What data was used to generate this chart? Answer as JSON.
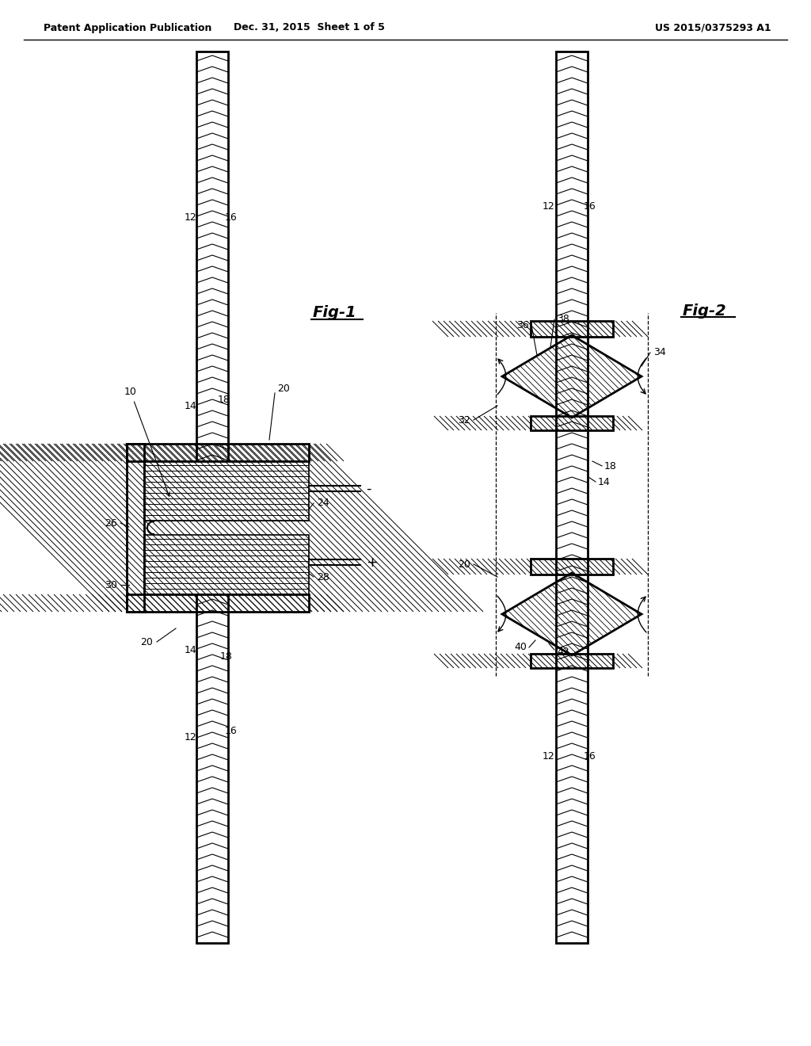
{
  "background_color": "#ffffff",
  "line_color": "#000000",
  "header_left": "Patent Application Publication",
  "header_center": "Dec. 31, 2015  Sheet 1 of 5",
  "header_right": "US 2015/0375293 A1",
  "fig1_label": "Fig-1",
  "fig2_label": "Fig-2"
}
